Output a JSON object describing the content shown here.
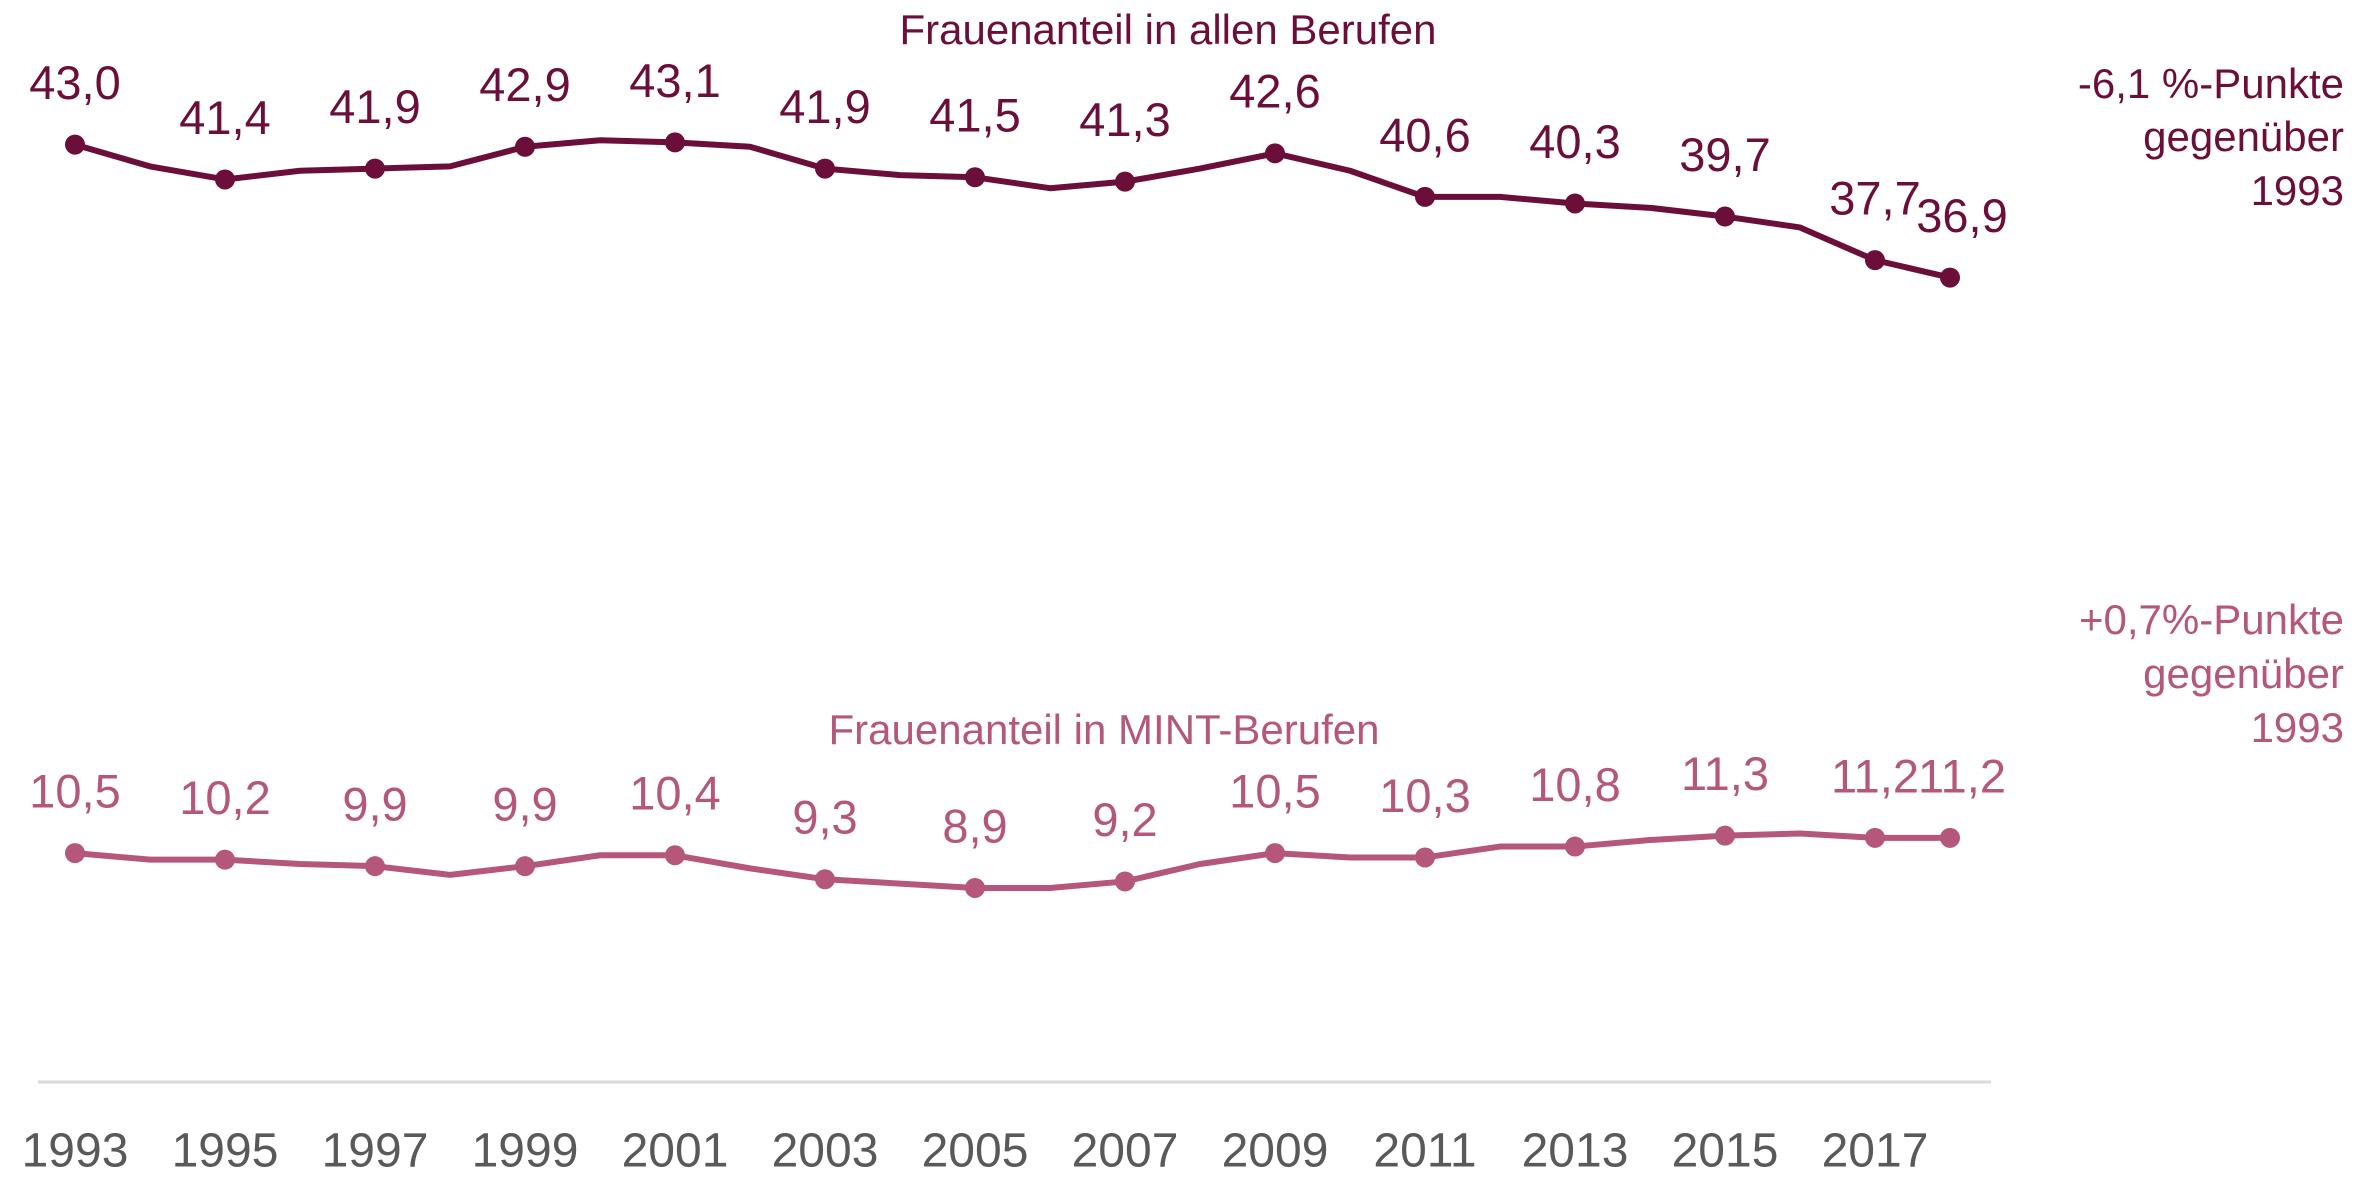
{
  "chart_data": {
    "type": "line",
    "x": [
      1993,
      1994,
      1995,
      1996,
      1997,
      1998,
      1999,
      2000,
      2001,
      2002,
      2003,
      2004,
      2005,
      2006,
      2007,
      2008,
      2009,
      2010,
      2011,
      2012,
      2013,
      2014,
      2015,
      2016,
      2017,
      2018
    ],
    "xlim": [
      1993,
      2018
    ],
    "xticks": [
      1993,
      1995,
      1997,
      1999,
      2001,
      2003,
      2005,
      2007,
      2009,
      2011,
      2013,
      2015,
      2017
    ],
    "ylim": [
      0,
      50
    ],
    "grid": false,
    "series": [
      {
        "name": "Frauenanteil in allen Berufen",
        "color": "#6b0f3a",
        "values": [
          43.0,
          42.0,
          41.4,
          41.8,
          41.9,
          42.0,
          42.9,
          43.2,
          43.1,
          42.9,
          41.9,
          41.6,
          41.5,
          41.0,
          41.3,
          41.9,
          42.6,
          41.8,
          40.6,
          40.6,
          40.3,
          40.1,
          39.7,
          39.2,
          37.7,
          36.9
        ],
        "value_labels": [
          "43,0",
          null,
          "41,4",
          null,
          "41,9",
          null,
          "42,9",
          null,
          "43,1",
          null,
          "41,9",
          null,
          "41,5",
          null,
          "41,3",
          null,
          "42,6",
          null,
          "40,6",
          null,
          "40,3",
          null,
          "39,7",
          null,
          "37,7",
          "36,9"
        ]
      },
      {
        "name": "Frauenanteil in MINT-Berufen",
        "color": "#b5577a",
        "values": [
          10.5,
          10.2,
          10.2,
          10.0,
          9.9,
          9.5,
          9.9,
          10.4,
          10.4,
          9.8,
          9.3,
          9.1,
          8.9,
          8.9,
          9.2,
          10.0,
          10.5,
          10.3,
          10.3,
          10.8,
          10.8,
          11.1,
          11.3,
          11.4,
          11.2,
          11.2
        ],
        "value_labels": [
          "10,5",
          null,
          "10,2",
          null,
          "9,9",
          null,
          "9,9",
          null,
          "10,4",
          null,
          "9,3",
          null,
          "8,9",
          null,
          "9,2",
          null,
          "10,5",
          null,
          "10,3",
          null,
          "10,8",
          null,
          "11,3",
          null,
          "11,2",
          "11,2"
        ]
      }
    ],
    "annotations": [
      [
        "-6,1 %-Punkte",
        "gegenüber",
        "1993"
      ],
      [
        "+0,7%-Punkte",
        "gegenüber",
        "1993"
      ]
    ]
  }
}
